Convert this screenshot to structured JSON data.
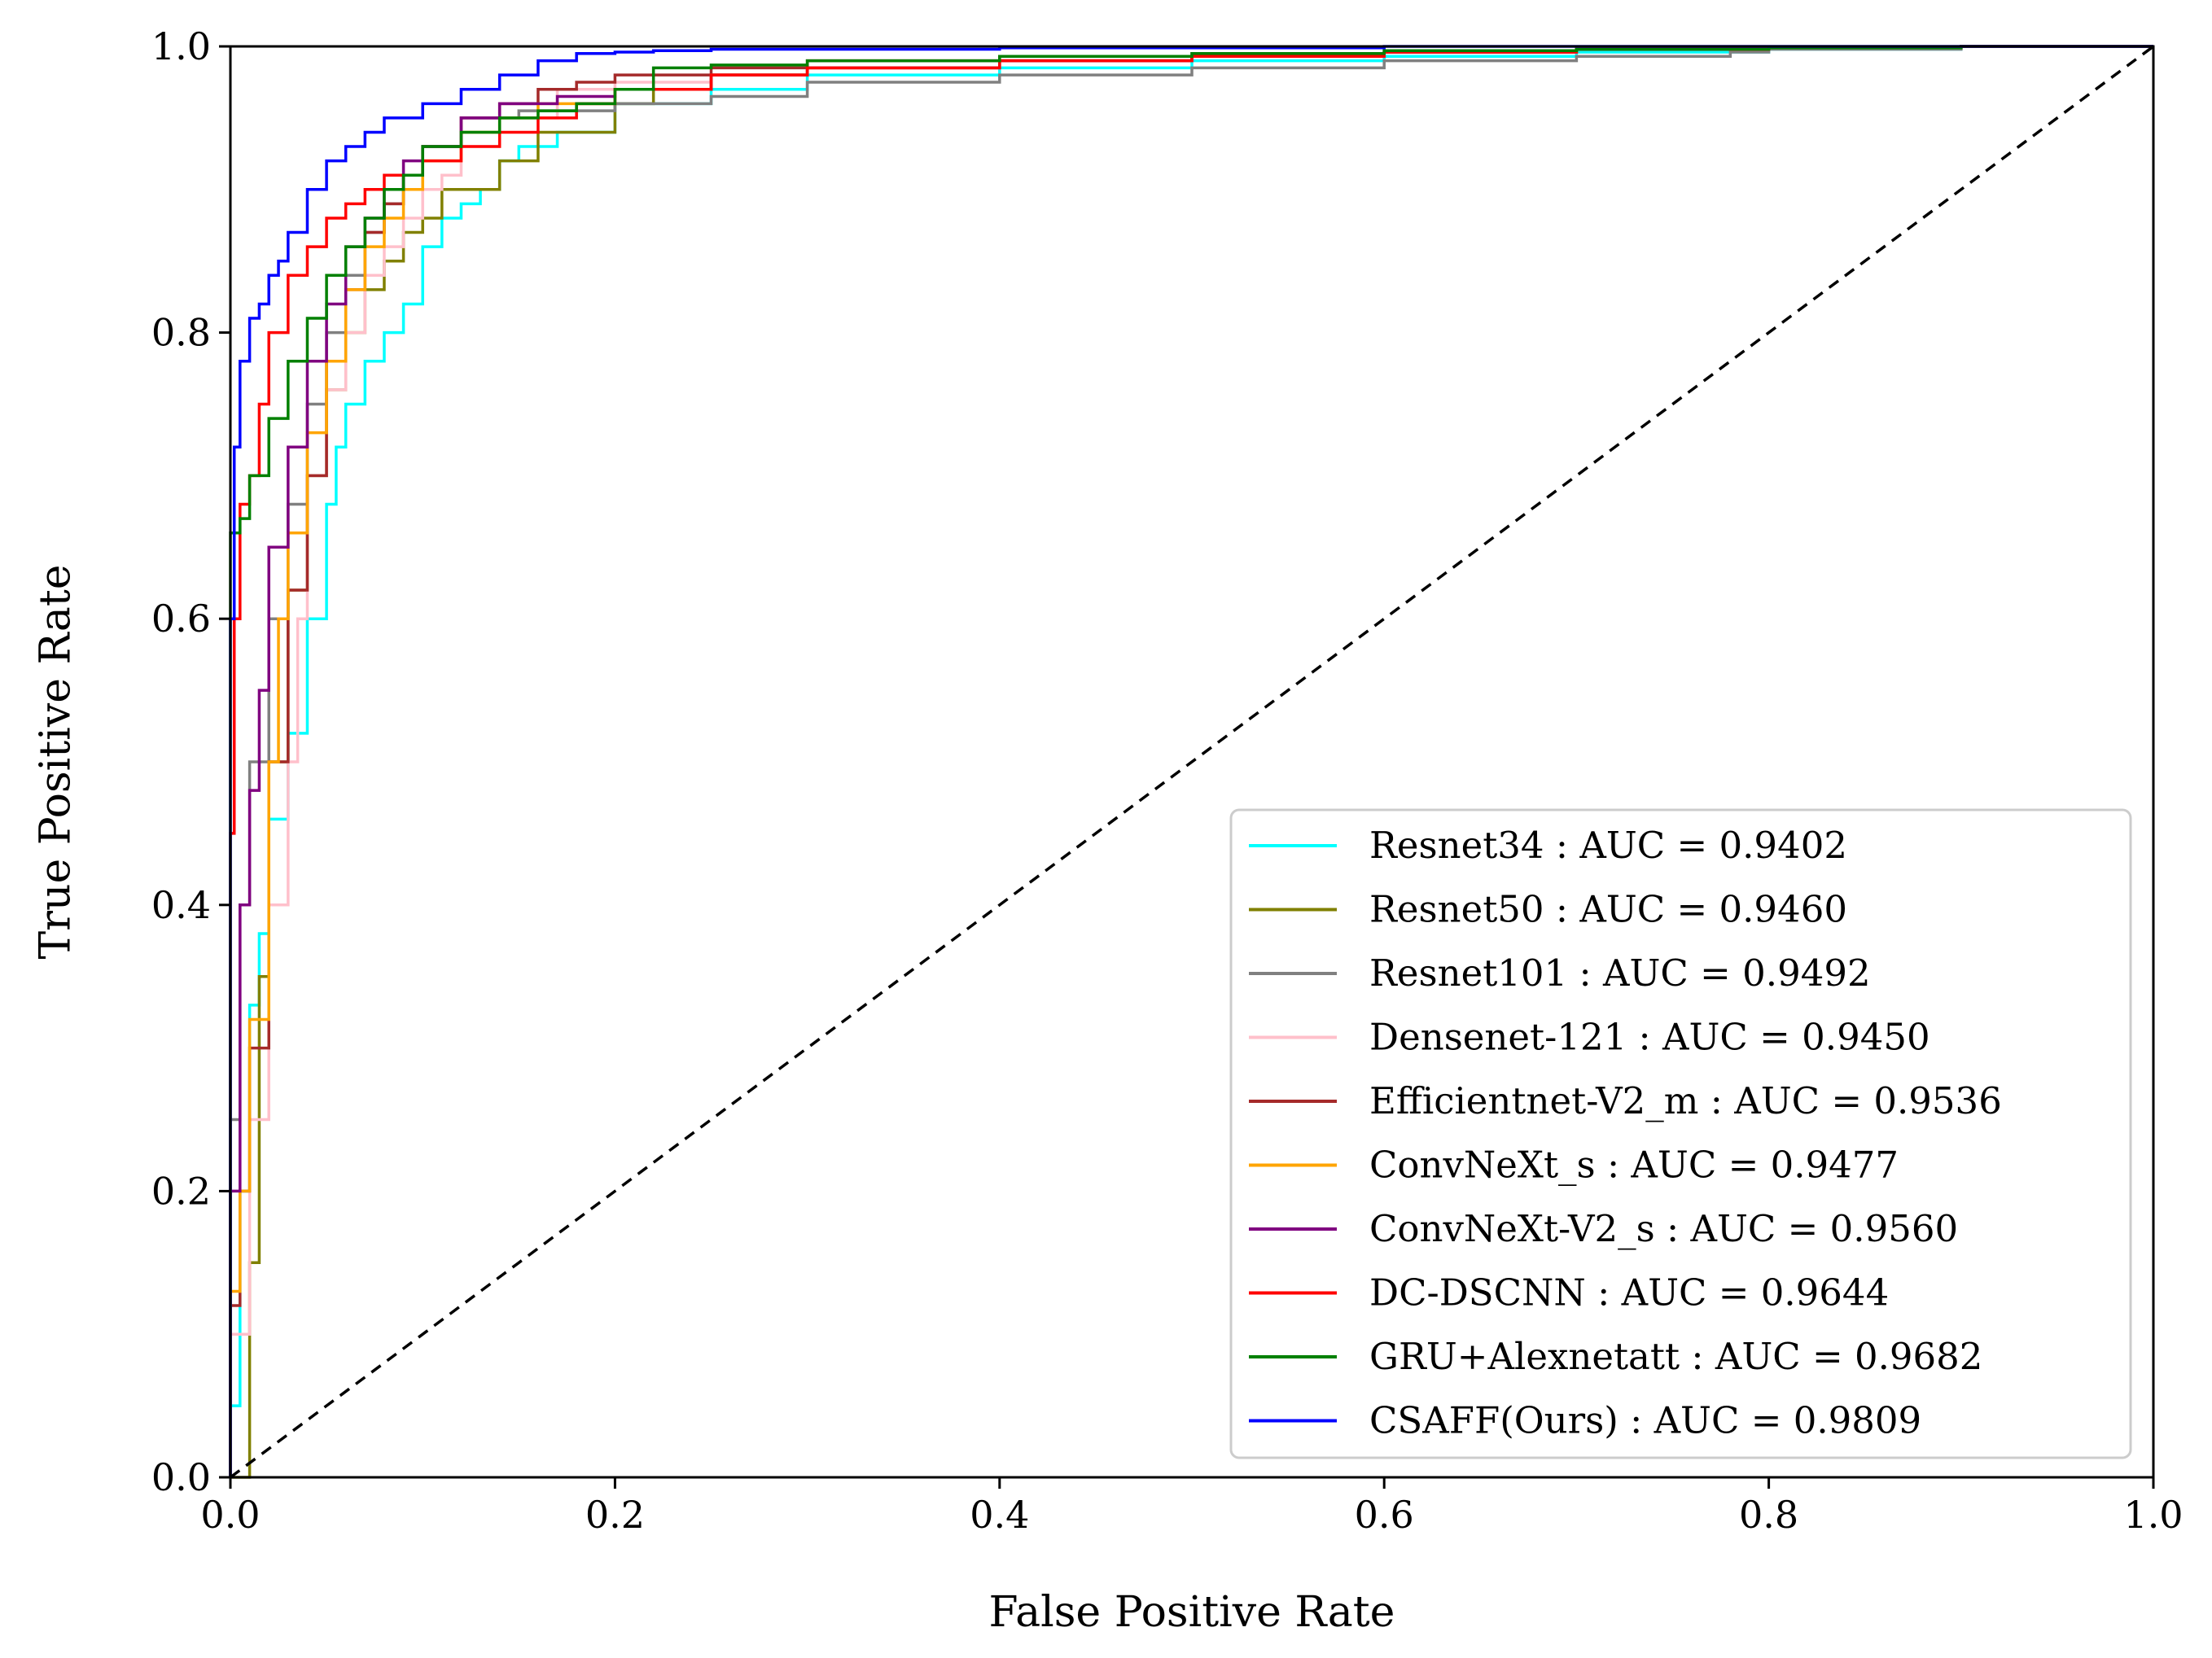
{
  "chart_data": {
    "type": "line",
    "title": "",
    "xlabel": "False Positive Rate",
    "ylabel": "True Positive Rate",
    "xlim": [
      0.0,
      1.0
    ],
    "ylim": [
      0.0,
      1.0
    ],
    "xticks": [
      "0.0",
      "0.2",
      "0.4",
      "0.6",
      "0.8",
      "1.0"
    ],
    "yticks": [
      "0.0",
      "0.2",
      "0.4",
      "0.6",
      "0.8",
      "1.0"
    ],
    "grid": false,
    "legend_position": "lower-right",
    "diagonal": {
      "x": [
        0,
        1
      ],
      "y": [
        0,
        1
      ],
      "color": "#000000",
      "style": "dashed"
    },
    "series": [
      {
        "name": "Resnet34 : AUC = 0.9402",
        "color": "#00ffff",
        "x": [
          0,
          0.005,
          0.01,
          0.015,
          0.02,
          0.03,
          0.04,
          0.05,
          0.055,
          0.06,
          0.07,
          0.08,
          0.09,
          0.1,
          0.11,
          0.12,
          0.13,
          0.14,
          0.15,
          0.17,
          0.2,
          0.25,
          0.3,
          0.4,
          0.5,
          0.6,
          0.7,
          0.8,
          0.9,
          1.0
        ],
        "y": [
          0,
          0.05,
          0.2,
          0.33,
          0.38,
          0.46,
          0.52,
          0.6,
          0.68,
          0.72,
          0.75,
          0.78,
          0.8,
          0.82,
          0.86,
          0.88,
          0.89,
          0.9,
          0.92,
          0.93,
          0.94,
          0.96,
          0.97,
          0.98,
          0.985,
          0.99,
          0.993,
          0.996,
          0.998,
          1.0
        ]
      },
      {
        "name": "Resnet50 : AUC = 0.9460",
        "color": "#808000",
        "x": [
          0,
          0.01,
          0.015,
          0.02,
          0.03,
          0.04,
          0.05,
          0.06,
          0.07,
          0.08,
          0.09,
          0.1,
          0.11,
          0.12,
          0.14,
          0.16,
          0.2,
          0.22,
          0.25,
          0.3,
          0.4,
          0.5,
          0.6,
          0.7,
          0.8,
          0.9,
          1.0
        ],
        "y": [
          0,
          0.0,
          0.15,
          0.35,
          0.5,
          0.62,
          0.7,
          0.76,
          0.8,
          0.83,
          0.85,
          0.87,
          0.88,
          0.9,
          0.9,
          0.92,
          0.94,
          0.96,
          0.97,
          0.98,
          0.985,
          0.99,
          0.993,
          0.996,
          0.998,
          0.999,
          1.0
        ]
      },
      {
        "name": "Resnet101 : AUC = 0.9492",
        "color": "#808080",
        "x": [
          0,
          0.005,
          0.01,
          0.02,
          0.03,
          0.04,
          0.05,
          0.06,
          0.07,
          0.08,
          0.09,
          0.1,
          0.12,
          0.15,
          0.2,
          0.25,
          0.3,
          0.4,
          0.5,
          0.6,
          0.7,
          0.78,
          0.8,
          0.9,
          1.0
        ],
        "y": [
          0,
          0.25,
          0.4,
          0.5,
          0.6,
          0.68,
          0.75,
          0.8,
          0.84,
          0.87,
          0.89,
          0.91,
          0.93,
          0.95,
          0.955,
          0.96,
          0.965,
          0.975,
          0.98,
          0.985,
          0.99,
          0.993,
          0.996,
          0.998,
          1.0
        ]
      },
      {
        "name": "Densenet-121 : AUC = 0.9450",
        "color": "#ffc0cb",
        "x": [
          0,
          0.01,
          0.02,
          0.03,
          0.035,
          0.04,
          0.05,
          0.06,
          0.07,
          0.08,
          0.09,
          0.1,
          0.11,
          0.12,
          0.14,
          0.17,
          0.2,
          0.25,
          0.3,
          0.4,
          0.5,
          0.6,
          0.7,
          0.8,
          0.9,
          1.0
        ],
        "y": [
          0,
          0.1,
          0.25,
          0.4,
          0.5,
          0.6,
          0.7,
          0.76,
          0.8,
          0.84,
          0.86,
          0.88,
          0.9,
          0.91,
          0.93,
          0.95,
          0.97,
          0.975,
          0.98,
          0.985,
          0.99,
          0.993,
          0.996,
          0.998,
          0.999,
          1.0
        ]
      },
      {
        "name": "Efficientnet-V2_m : AUC = 0.9536",
        "color": "#a52a2a",
        "x": [
          0,
          0.005,
          0.01,
          0.02,
          0.03,
          0.04,
          0.05,
          0.06,
          0.07,
          0.08,
          0.09,
          0.1,
          0.12,
          0.14,
          0.16,
          0.18,
          0.2,
          0.25,
          0.3,
          0.4,
          0.5,
          0.6,
          0.7,
          0.8,
          0.9,
          1.0
        ],
        "y": [
          0,
          0.12,
          0.2,
          0.3,
          0.5,
          0.62,
          0.7,
          0.78,
          0.83,
          0.87,
          0.89,
          0.91,
          0.93,
          0.95,
          0.96,
          0.97,
          0.975,
          0.98,
          0.985,
          0.99,
          0.993,
          0.995,
          0.997,
          0.998,
          0.999,
          1.0
        ]
      },
      {
        "name": "ConvNeXt_s : AUC = 0.9477",
        "color": "#ffa500",
        "x": [
          0,
          0.005,
          0.01,
          0.02,
          0.025,
          0.03,
          0.04,
          0.05,
          0.06,
          0.07,
          0.08,
          0.09,
          0.1,
          0.12,
          0.14,
          0.16,
          0.2,
          0.25,
          0.3,
          0.4,
          0.5,
          0.6,
          0.7,
          0.8,
          0.9,
          1.0
        ],
        "y": [
          0,
          0.13,
          0.2,
          0.32,
          0.5,
          0.6,
          0.66,
          0.73,
          0.78,
          0.83,
          0.86,
          0.88,
          0.9,
          0.92,
          0.94,
          0.95,
          0.96,
          0.97,
          0.98,
          0.985,
          0.99,
          0.993,
          0.996,
          0.998,
          0.999,
          1.0
        ]
      },
      {
        "name": "ConvNeXt-V2_s : AUC = 0.9560",
        "color": "#800080",
        "x": [
          0,
          0.005,
          0.01,
          0.015,
          0.02,
          0.03,
          0.04,
          0.05,
          0.06,
          0.07,
          0.08,
          0.09,
          0.1,
          0.12,
          0.14,
          0.17,
          0.2,
          0.25,
          0.3,
          0.4,
          0.5,
          0.6,
          0.7,
          0.8,
          0.9,
          1.0
        ],
        "y": [
          0,
          0.2,
          0.4,
          0.48,
          0.55,
          0.65,
          0.72,
          0.78,
          0.82,
          0.86,
          0.88,
          0.9,
          0.92,
          0.93,
          0.95,
          0.96,
          0.965,
          0.97,
          0.98,
          0.985,
          0.99,
          0.993,
          0.996,
          0.998,
          0.999,
          1.0
        ]
      },
      {
        "name": "DC-DSCNN : AUC = 0.9644",
        "color": "#ff0000",
        "x": [
          0,
          0.002,
          0.005,
          0.01,
          0.015,
          0.02,
          0.03,
          0.04,
          0.05,
          0.06,
          0.07,
          0.08,
          0.1,
          0.12,
          0.14,
          0.16,
          0.18,
          0.2,
          0.25,
          0.3,
          0.4,
          0.5,
          0.6,
          0.7,
          0.8,
          0.9,
          1.0
        ],
        "y": [
          0,
          0.45,
          0.6,
          0.68,
          0.7,
          0.75,
          0.8,
          0.84,
          0.86,
          0.88,
          0.89,
          0.9,
          0.91,
          0.92,
          0.93,
          0.94,
          0.95,
          0.96,
          0.97,
          0.98,
          0.985,
          0.99,
          0.993,
          0.996,
          0.998,
          0.999,
          1.0
        ]
      },
      {
        "name": "GRU+Alexnetatt : AUC = 0.9682",
        "color": "#008000",
        "x": [
          0,
          0.005,
          0.01,
          0.02,
          0.03,
          0.04,
          0.05,
          0.06,
          0.07,
          0.08,
          0.09,
          0.1,
          0.12,
          0.14,
          0.16,
          0.18,
          0.2,
          0.22,
          0.25,
          0.3,
          0.4,
          0.5,
          0.6,
          0.7,
          0.8,
          0.9,
          1.0
        ],
        "y": [
          0,
          0.66,
          0.67,
          0.7,
          0.74,
          0.78,
          0.81,
          0.84,
          0.86,
          0.88,
          0.9,
          0.91,
          0.93,
          0.94,
          0.95,
          0.955,
          0.96,
          0.97,
          0.985,
          0.987,
          0.99,
          0.993,
          0.995,
          0.997,
          0.998,
          0.999,
          1.0
        ]
      },
      {
        "name": "CSAFF(Ours) : AUC = 0.9809",
        "color": "#0000ff",
        "x": [
          0,
          0.002,
          0.005,
          0.01,
          0.015,
          0.02,
          0.025,
          0.03,
          0.04,
          0.05,
          0.06,
          0.07,
          0.08,
          0.1,
          0.12,
          0.14,
          0.16,
          0.18,
          0.2,
          0.22,
          0.25,
          0.3,
          0.4,
          0.5,
          0.6,
          0.7,
          0.8,
          0.9,
          1.0
        ],
        "y": [
          0,
          0.6,
          0.72,
          0.78,
          0.81,
          0.82,
          0.84,
          0.85,
          0.87,
          0.9,
          0.92,
          0.93,
          0.94,
          0.95,
          0.96,
          0.97,
          0.98,
          0.99,
          0.995,
          0.996,
          0.997,
          0.998,
          0.998,
          0.999,
          0.999,
          1.0,
          1.0,
          1.0,
          1.0
        ]
      }
    ]
  }
}
